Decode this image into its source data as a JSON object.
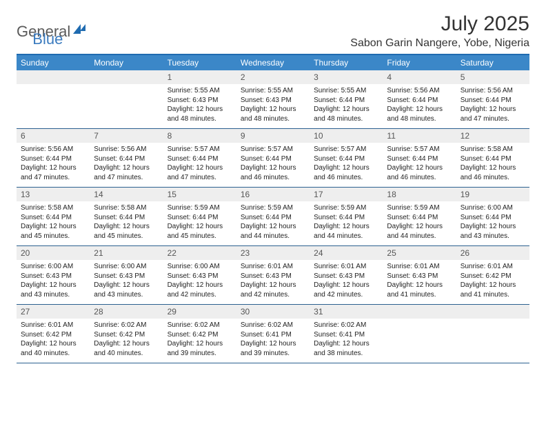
{
  "logo": {
    "part1": "General",
    "part2": "Blue"
  },
  "monthTitle": "July 2025",
  "location": "Sabon Garin Nangere, Yobe, Nigeria",
  "colors": {
    "headerBg": "#3b87c8",
    "borderTop": "#1f6bb0",
    "weekBorder": "#2a5f8f",
    "cellTopBg": "#eeeeee",
    "logoGray": "#5a5a5a",
    "logoBlue": "#3b7bbf"
  },
  "dayNames": [
    "Sunday",
    "Monday",
    "Tuesday",
    "Wednesday",
    "Thursday",
    "Friday",
    "Saturday"
  ],
  "weeks": [
    [
      {
        "day": "",
        "sunrise": "",
        "sunset": "",
        "daylight": ""
      },
      {
        "day": "",
        "sunrise": "",
        "sunset": "",
        "daylight": ""
      },
      {
        "day": "1",
        "sunrise": "Sunrise: 5:55 AM",
        "sunset": "Sunset: 6:43 PM",
        "daylight": "Daylight: 12 hours and 48 minutes."
      },
      {
        "day": "2",
        "sunrise": "Sunrise: 5:55 AM",
        "sunset": "Sunset: 6:43 PM",
        "daylight": "Daylight: 12 hours and 48 minutes."
      },
      {
        "day": "3",
        "sunrise": "Sunrise: 5:55 AM",
        "sunset": "Sunset: 6:44 PM",
        "daylight": "Daylight: 12 hours and 48 minutes."
      },
      {
        "day": "4",
        "sunrise": "Sunrise: 5:56 AM",
        "sunset": "Sunset: 6:44 PM",
        "daylight": "Daylight: 12 hours and 48 minutes."
      },
      {
        "day": "5",
        "sunrise": "Sunrise: 5:56 AM",
        "sunset": "Sunset: 6:44 PM",
        "daylight": "Daylight: 12 hours and 47 minutes."
      }
    ],
    [
      {
        "day": "6",
        "sunrise": "Sunrise: 5:56 AM",
        "sunset": "Sunset: 6:44 PM",
        "daylight": "Daylight: 12 hours and 47 minutes."
      },
      {
        "day": "7",
        "sunrise": "Sunrise: 5:56 AM",
        "sunset": "Sunset: 6:44 PM",
        "daylight": "Daylight: 12 hours and 47 minutes."
      },
      {
        "day": "8",
        "sunrise": "Sunrise: 5:57 AM",
        "sunset": "Sunset: 6:44 PM",
        "daylight": "Daylight: 12 hours and 47 minutes."
      },
      {
        "day": "9",
        "sunrise": "Sunrise: 5:57 AM",
        "sunset": "Sunset: 6:44 PM",
        "daylight": "Daylight: 12 hours and 46 minutes."
      },
      {
        "day": "10",
        "sunrise": "Sunrise: 5:57 AM",
        "sunset": "Sunset: 6:44 PM",
        "daylight": "Daylight: 12 hours and 46 minutes."
      },
      {
        "day": "11",
        "sunrise": "Sunrise: 5:57 AM",
        "sunset": "Sunset: 6:44 PM",
        "daylight": "Daylight: 12 hours and 46 minutes."
      },
      {
        "day": "12",
        "sunrise": "Sunrise: 5:58 AM",
        "sunset": "Sunset: 6:44 PM",
        "daylight": "Daylight: 12 hours and 46 minutes."
      }
    ],
    [
      {
        "day": "13",
        "sunrise": "Sunrise: 5:58 AM",
        "sunset": "Sunset: 6:44 PM",
        "daylight": "Daylight: 12 hours and 45 minutes."
      },
      {
        "day": "14",
        "sunrise": "Sunrise: 5:58 AM",
        "sunset": "Sunset: 6:44 PM",
        "daylight": "Daylight: 12 hours and 45 minutes."
      },
      {
        "day": "15",
        "sunrise": "Sunrise: 5:59 AM",
        "sunset": "Sunset: 6:44 PM",
        "daylight": "Daylight: 12 hours and 45 minutes."
      },
      {
        "day": "16",
        "sunrise": "Sunrise: 5:59 AM",
        "sunset": "Sunset: 6:44 PM",
        "daylight": "Daylight: 12 hours and 44 minutes."
      },
      {
        "day": "17",
        "sunrise": "Sunrise: 5:59 AM",
        "sunset": "Sunset: 6:44 PM",
        "daylight": "Daylight: 12 hours and 44 minutes."
      },
      {
        "day": "18",
        "sunrise": "Sunrise: 5:59 AM",
        "sunset": "Sunset: 6:44 PM",
        "daylight": "Daylight: 12 hours and 44 minutes."
      },
      {
        "day": "19",
        "sunrise": "Sunrise: 6:00 AM",
        "sunset": "Sunset: 6:44 PM",
        "daylight": "Daylight: 12 hours and 43 minutes."
      }
    ],
    [
      {
        "day": "20",
        "sunrise": "Sunrise: 6:00 AM",
        "sunset": "Sunset: 6:43 PM",
        "daylight": "Daylight: 12 hours and 43 minutes."
      },
      {
        "day": "21",
        "sunrise": "Sunrise: 6:00 AM",
        "sunset": "Sunset: 6:43 PM",
        "daylight": "Daylight: 12 hours and 43 minutes."
      },
      {
        "day": "22",
        "sunrise": "Sunrise: 6:00 AM",
        "sunset": "Sunset: 6:43 PM",
        "daylight": "Daylight: 12 hours and 42 minutes."
      },
      {
        "day": "23",
        "sunrise": "Sunrise: 6:01 AM",
        "sunset": "Sunset: 6:43 PM",
        "daylight": "Daylight: 12 hours and 42 minutes."
      },
      {
        "day": "24",
        "sunrise": "Sunrise: 6:01 AM",
        "sunset": "Sunset: 6:43 PM",
        "daylight": "Daylight: 12 hours and 42 minutes."
      },
      {
        "day": "25",
        "sunrise": "Sunrise: 6:01 AM",
        "sunset": "Sunset: 6:43 PM",
        "daylight": "Daylight: 12 hours and 41 minutes."
      },
      {
        "day": "26",
        "sunrise": "Sunrise: 6:01 AM",
        "sunset": "Sunset: 6:42 PM",
        "daylight": "Daylight: 12 hours and 41 minutes."
      }
    ],
    [
      {
        "day": "27",
        "sunrise": "Sunrise: 6:01 AM",
        "sunset": "Sunset: 6:42 PM",
        "daylight": "Daylight: 12 hours and 40 minutes."
      },
      {
        "day": "28",
        "sunrise": "Sunrise: 6:02 AM",
        "sunset": "Sunset: 6:42 PM",
        "daylight": "Daylight: 12 hours and 40 minutes."
      },
      {
        "day": "29",
        "sunrise": "Sunrise: 6:02 AM",
        "sunset": "Sunset: 6:42 PM",
        "daylight": "Daylight: 12 hours and 39 minutes."
      },
      {
        "day": "30",
        "sunrise": "Sunrise: 6:02 AM",
        "sunset": "Sunset: 6:41 PM",
        "daylight": "Daylight: 12 hours and 39 minutes."
      },
      {
        "day": "31",
        "sunrise": "Sunrise: 6:02 AM",
        "sunset": "Sunset: 6:41 PM",
        "daylight": "Daylight: 12 hours and 38 minutes."
      },
      {
        "day": "",
        "sunrise": "",
        "sunset": "",
        "daylight": ""
      },
      {
        "day": "",
        "sunrise": "",
        "sunset": "",
        "daylight": ""
      }
    ]
  ]
}
